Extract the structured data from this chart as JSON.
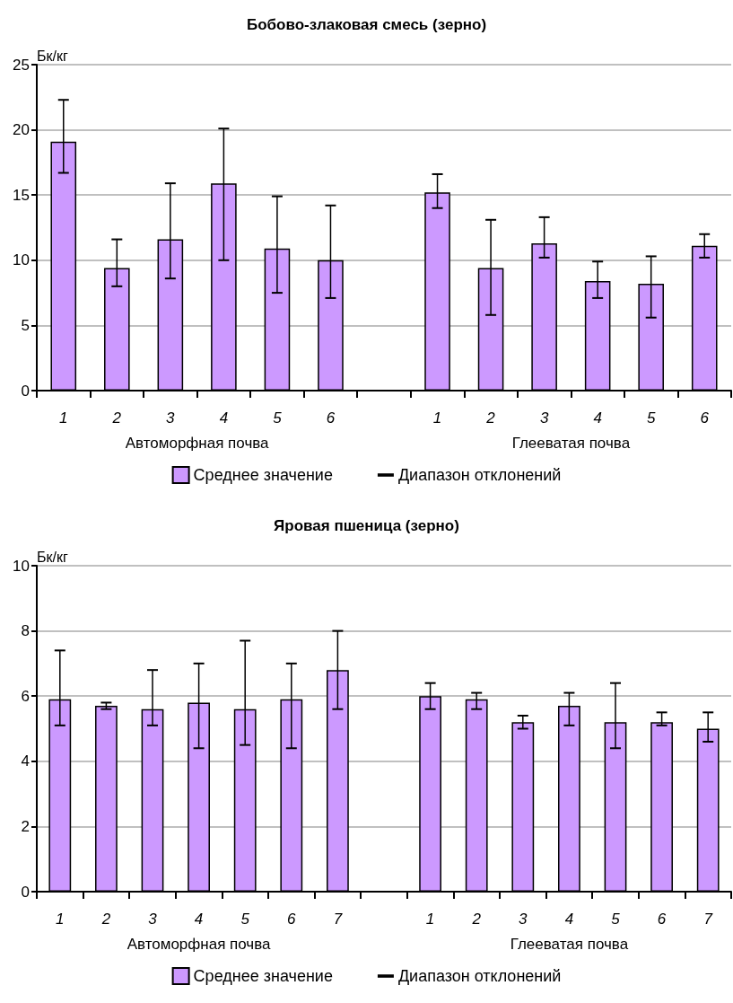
{
  "chart_data": [
    {
      "type": "bar",
      "title": "Бобово-злаковая смесь (зерно)",
      "ylabel": "Бк/кг",
      "categories": [
        "1",
        "2",
        "3",
        "4",
        "5",
        "6",
        null,
        "1",
        "2",
        "3",
        "4",
        "5",
        "6"
      ],
      "series": [
        {
          "name": "Среднее значение",
          "color": "#cc99ff",
          "values": [
            19.1,
            9.4,
            11.6,
            15.9,
            10.9,
            10.0,
            null,
            15.2,
            9.4,
            11.3,
            8.4,
            8.2,
            11.1
          ],
          "errors": [
            [
              16.7,
              22.3
            ],
            [
              8.0,
              11.6
            ],
            [
              8.6,
              15.9
            ],
            [
              10.0,
              20.1
            ],
            [
              7.5,
              14.9
            ],
            [
              7.1,
              14.2
            ],
            null,
            [
              14.0,
              16.6
            ],
            [
              5.8,
              13.1
            ],
            [
              10.2,
              13.3
            ],
            [
              7.1,
              9.9
            ],
            [
              5.6,
              10.3
            ],
            [
              10.2,
              12.0
            ]
          ]
        }
      ],
      "annotations": [
        "Автоморфная почва",
        "Глееватая почва",
        "Диапазон отклонений"
      ],
      "ylim": [
        0,
        25
      ],
      "yticks": [
        0,
        5,
        10,
        15,
        20,
        25
      ],
      "grid": "y",
      "legend": "bottom"
    },
    {
      "type": "bar",
      "title": "Яровая пшеница (зерно)",
      "ylabel": "Бк/кг",
      "categories": [
        "1",
        "2",
        "3",
        "4",
        "5",
        "6",
        "7",
        null,
        "1",
        "2",
        "3",
        "4",
        "5",
        "6",
        "7"
      ],
      "series": [
        {
          "name": "Среднее значение",
          "color": "#cc99ff",
          "values": [
            5.9,
            5.7,
            5.6,
            5.8,
            5.6,
            5.9,
            6.8,
            null,
            6.0,
            5.9,
            5.2,
            5.7,
            5.2,
            5.2,
            5.0
          ],
          "errors": [
            [
              5.1,
              7.4
            ],
            [
              5.6,
              5.8
            ],
            [
              5.1,
              6.8
            ],
            [
              4.4,
              7.0
            ],
            [
              4.5,
              7.7
            ],
            [
              4.4,
              7.0
            ],
            [
              5.6,
              8.0
            ],
            null,
            [
              5.6,
              6.4
            ],
            [
              5.6,
              6.1
            ],
            [
              5.0,
              5.4
            ],
            [
              5.1,
              6.1
            ],
            [
              4.4,
              6.4
            ],
            [
              5.1,
              5.5
            ],
            [
              4.6,
              5.5
            ]
          ]
        }
      ],
      "annotations": [
        "Автоморфная почва",
        "Глееватая почва",
        "Диапазон отклонений"
      ],
      "ylim": [
        0,
        10
      ],
      "yticks": [
        0,
        2,
        4,
        6,
        8,
        10
      ],
      "grid": "y",
      "legend": "bottom"
    }
  ]
}
